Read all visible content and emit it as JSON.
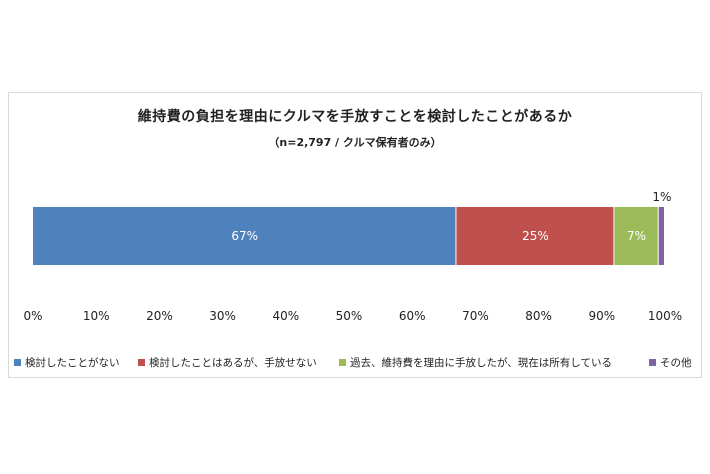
{
  "chart_data": {
    "type": "bar",
    "orientation": "horizontal-stacked",
    "title": "維持費の負担を理由にクルマを手放すことを検討したことがあるか",
    "subtitle": "（n=2,797 / クルマ保有者のみ）",
    "xlim": [
      0,
      100
    ],
    "x_ticks": [
      "0%",
      "10%",
      "20%",
      "30%",
      "40%",
      "50%",
      "60%",
      "70%",
      "80%",
      "90%",
      "100%"
    ],
    "grid": false,
    "legend_position": "bottom",
    "series": [
      {
        "name": "検討したことがない",
        "value": 67,
        "label": "67%",
        "color": "#4f81bd",
        "label_color": "#ffffff"
      },
      {
        "name": "検討したことはあるが、手放せない",
        "value": 25,
        "label": "25%",
        "color": "#c0504d",
        "label_color": "#ffffff"
      },
      {
        "name": "過去、維持費を理由に手放したが、現在は所有している",
        "value": 7,
        "label": "7%",
        "color": "#9bbb59",
        "label_color": "#ffffff"
      },
      {
        "name": "その他",
        "value": 1,
        "label": "1%",
        "color": "#8064a2",
        "label_color": "#222222"
      }
    ]
  }
}
